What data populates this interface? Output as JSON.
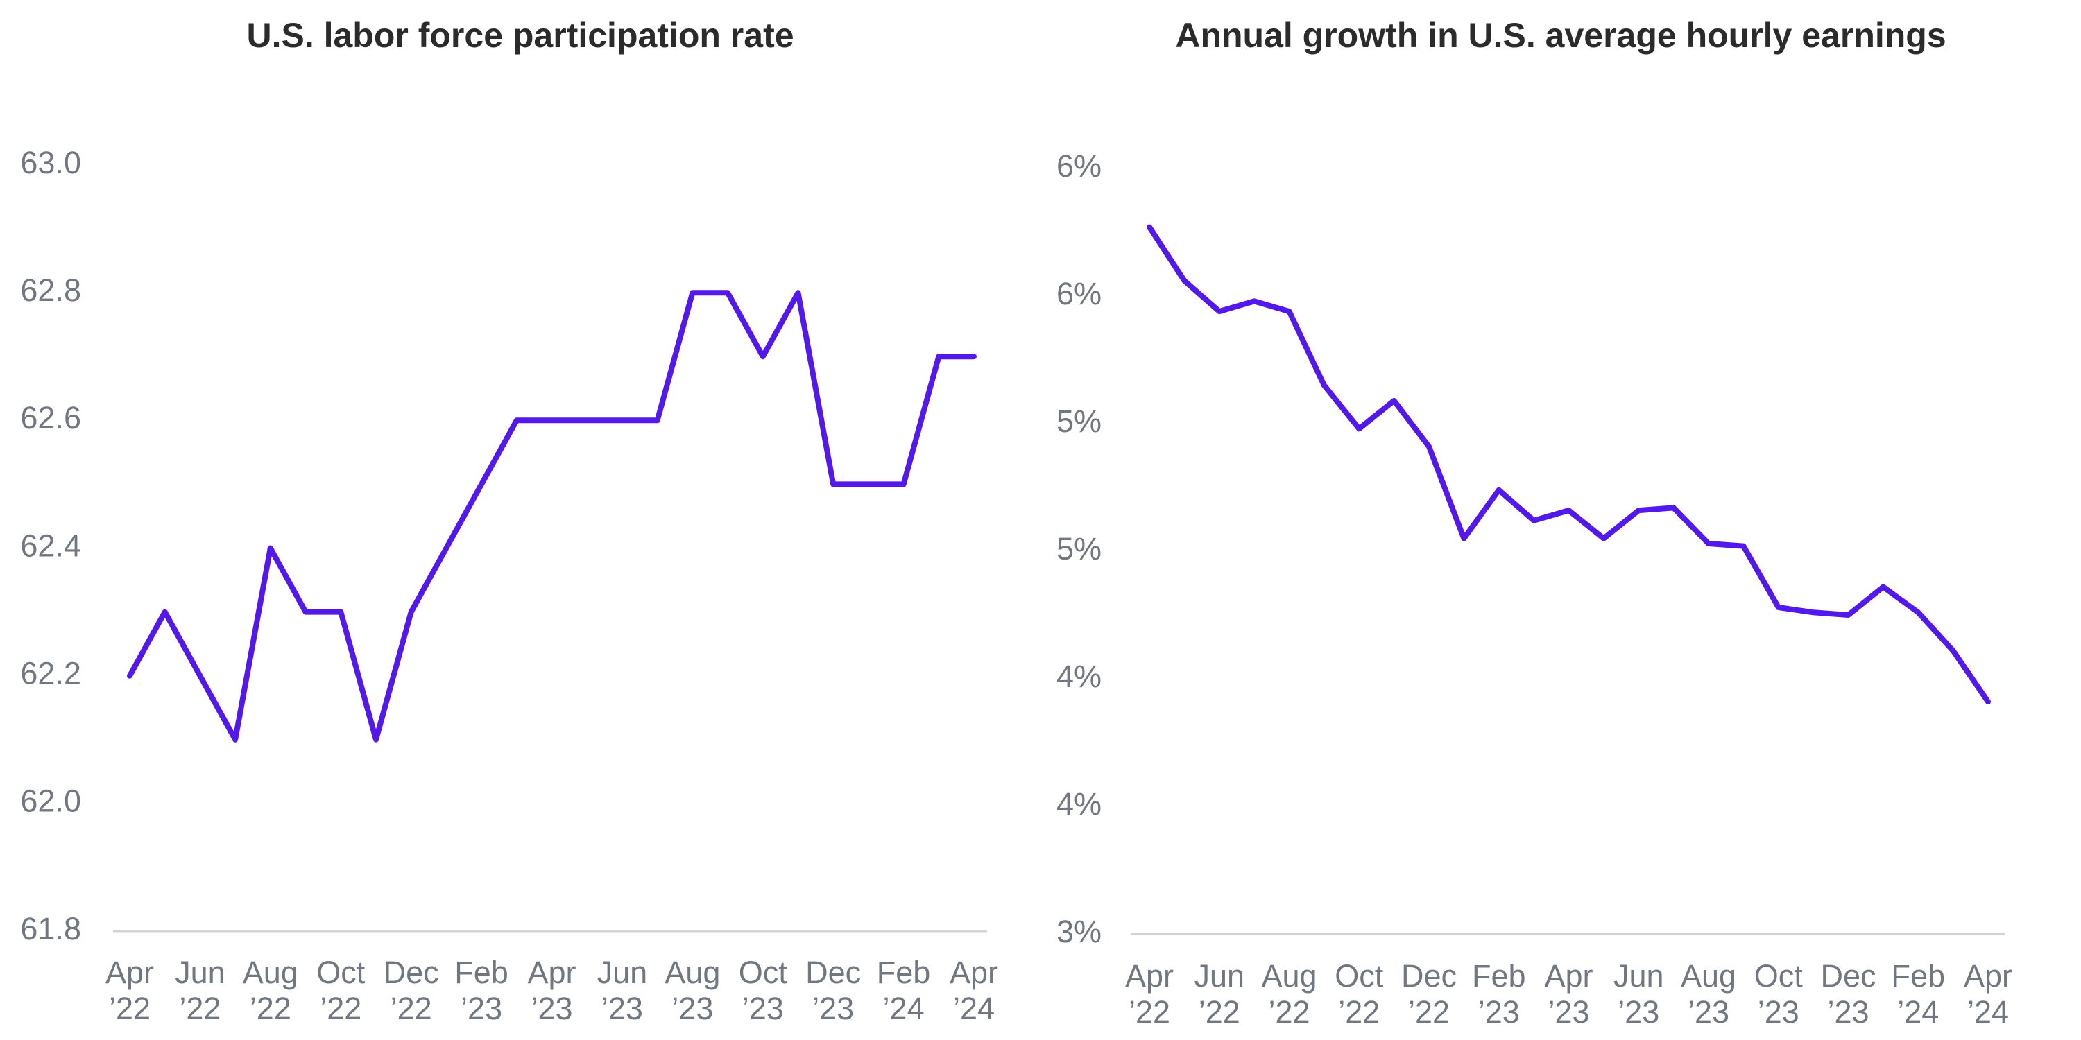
{
  "chart_data": [
    {
      "type": "line",
      "title": "U.S. labor force participation rate",
      "xlabel": "",
      "ylabel": "",
      "x": [
        "Apr 2022",
        "May 2022",
        "Jun 2022",
        "Jul 2022",
        "Aug 2022",
        "Sep 2022",
        "Oct 2022",
        "Nov 2022",
        "Dec 2022",
        "Jan 2023",
        "Feb 2023",
        "Mar 2023",
        "Apr 2023",
        "May 2023",
        "Jun 2023",
        "Jul 2023",
        "Aug 2023",
        "Sep 2023",
        "Oct 2023",
        "Nov 2023",
        "Dec 2023",
        "Jan 2024",
        "Feb 2024",
        "Mar 2024",
        "Apr 2024"
      ],
      "x_tick_labels": [
        [
          "Apr",
          "’22"
        ],
        [
          "Jun",
          "’22"
        ],
        [
          "Aug",
          "’22"
        ],
        [
          "Oct",
          "’22"
        ],
        [
          "Dec",
          "’22"
        ],
        [
          "Feb",
          "’23"
        ],
        [
          "Apr",
          "’23"
        ],
        [
          "Jun",
          "’23"
        ],
        [
          "Aug",
          "’23"
        ],
        [
          "Oct",
          "’23"
        ],
        [
          "Dec",
          "’23"
        ],
        [
          "Feb",
          "’24"
        ],
        [
          "Apr",
          "’24"
        ]
      ],
      "y_ticks": [
        61.8,
        62.0,
        62.2,
        62.4,
        62.6,
        62.8,
        63.0
      ],
      "y_tick_labels": [
        "61.8",
        "62.0",
        "62.2",
        "62.4",
        "62.6",
        "62.8",
        "63.0"
      ],
      "ylim": [
        61.8,
        63.0
      ],
      "grid": false,
      "color": "#5218ec",
      "series": [
        {
          "values": [
            62.2,
            62.3,
            62.2,
            62.1,
            62.4,
            62.3,
            62.3,
            62.1,
            62.3,
            62.4,
            62.5,
            62.6,
            62.6,
            62.6,
            62.6,
            62.6,
            62.8,
            62.8,
            62.7,
            62.8,
            62.5,
            62.5,
            62.5,
            62.7,
            62.7
          ]
        }
      ]
    },
    {
      "type": "line",
      "title": "Annual growth in U.S. average hourly earnings",
      "xlabel": "",
      "ylabel": "",
      "x": [
        "Apr 2022",
        "May 2022",
        "Jun 2022",
        "Jul 2022",
        "Aug 2022",
        "Sep 2022",
        "Oct 2022",
        "Nov 2022",
        "Dec 2022",
        "Jan 2023",
        "Feb 2023",
        "Mar 2023",
        "Apr 2023",
        "May 2023",
        "Jun 2023",
        "Jul 2023",
        "Aug 2023",
        "Sep 2023",
        "Oct 2023",
        "Nov 2023",
        "Dec 2023",
        "Jan 2024",
        "Feb 2024",
        "Mar 2024",
        "Apr 2024"
      ],
      "x_tick_labels": [
        [
          "Apr",
          "’22"
        ],
        [
          "Jun",
          "’22"
        ],
        [
          "Aug",
          "’22"
        ],
        [
          "Oct",
          "’22"
        ],
        [
          "Dec",
          "’22"
        ],
        [
          "Feb",
          "’23"
        ],
        [
          "Apr",
          "’23"
        ],
        [
          "Jun",
          "’23"
        ],
        [
          "Aug",
          "’23"
        ],
        [
          "Oct",
          "’23"
        ],
        [
          "Dec",
          "’23"
        ],
        [
          "Feb",
          "’24"
        ],
        [
          "Apr",
          "’24"
        ]
      ],
      "y_ticks": [
        3.0,
        3.5,
        4.0,
        4.5,
        5.0,
        5.5,
        6.0
      ],
      "y_tick_labels": [
        "3%",
        "4%",
        "4%",
        "5%",
        "5%",
        "6%",
        "6%"
      ],
      "ylim": [
        3.0,
        6.0
      ],
      "grid": false,
      "color": "#5218ec",
      "series": [
        {
          "values": [
            5.77,
            5.56,
            5.44,
            5.48,
            5.44,
            5.15,
            4.98,
            5.09,
            4.91,
            4.55,
            4.74,
            4.62,
            4.66,
            4.55,
            4.66,
            4.67,
            4.53,
            4.52,
            4.28,
            4.26,
            4.25,
            4.36,
            4.26,
            4.11,
            3.91
          ]
        }
      ]
    }
  ]
}
